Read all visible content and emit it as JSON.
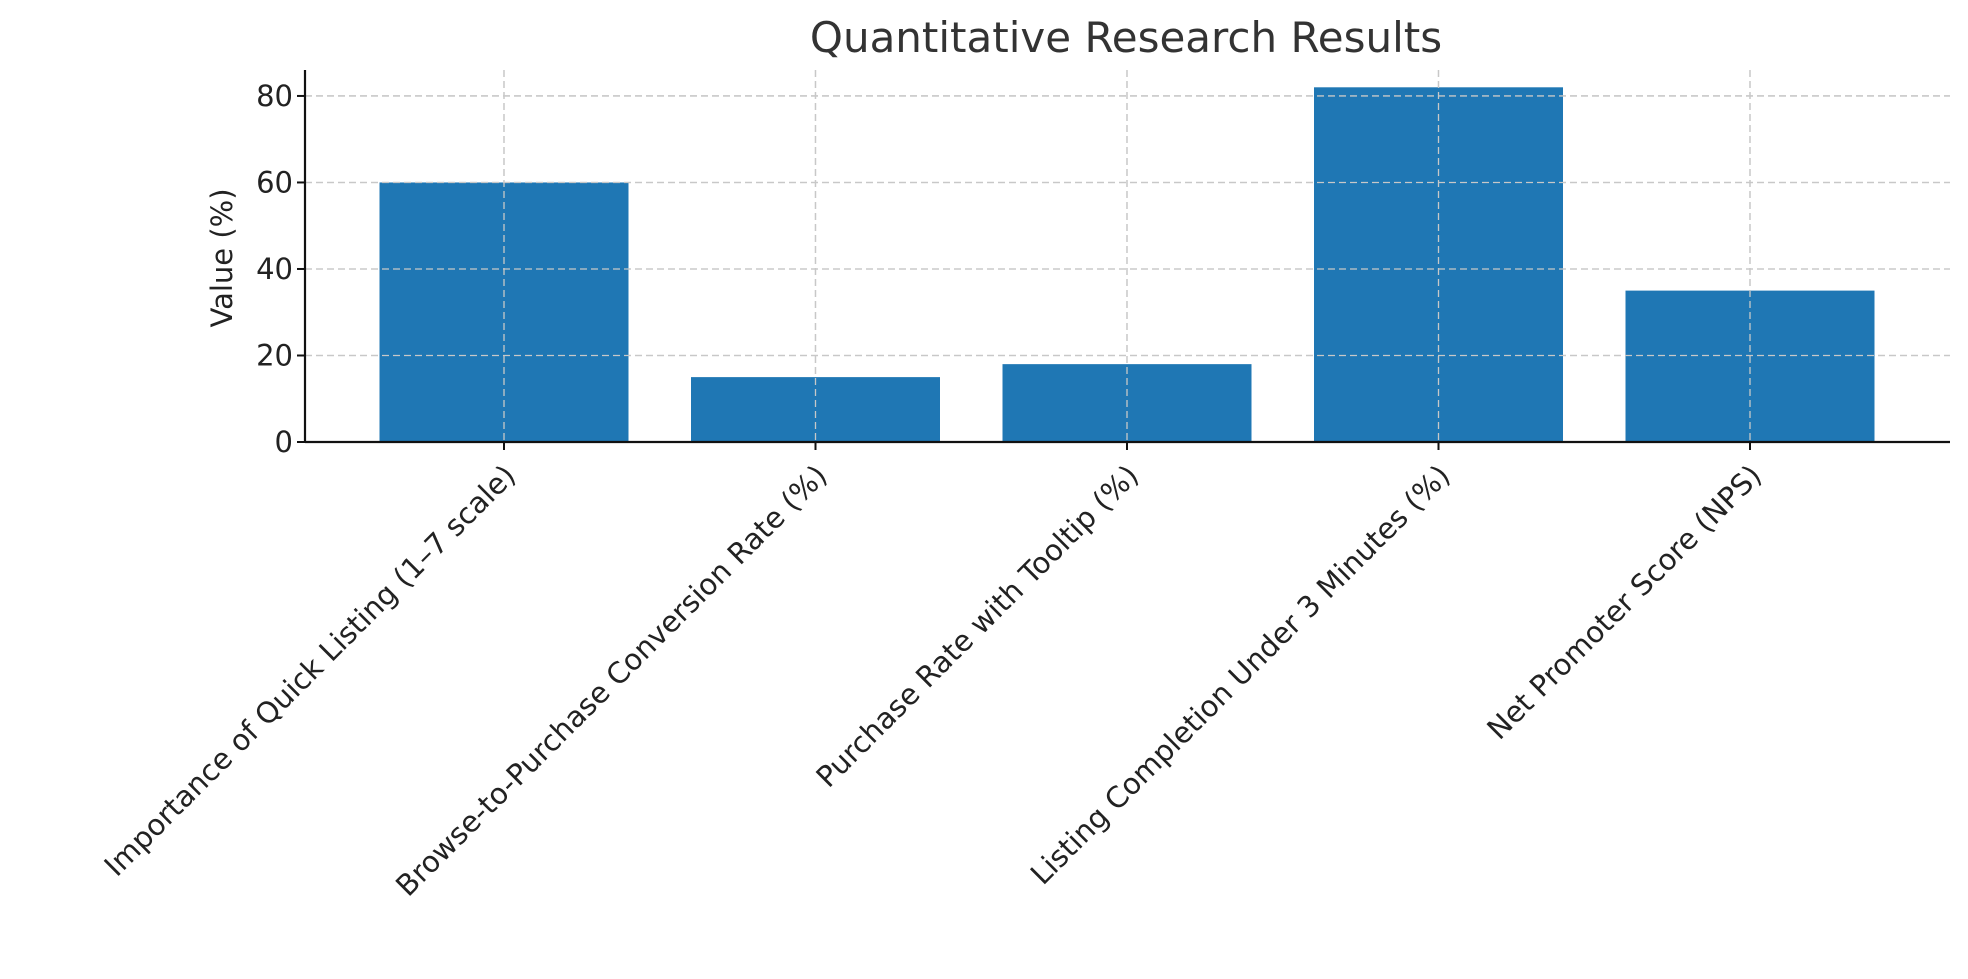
{
  "chart_data": {
    "type": "bar",
    "title": "Quantitative Research Results",
    "xlabel": "",
    "ylabel": "Value (%)",
    "categories": [
      "Importance of Quick Listing (1–7 scale)",
      "Browse-to-Purchase Conversion Rate (%)",
      "Purchase Rate with Tooltip (%)",
      "Listing Completion Under 3 Minutes (%)",
      "Net Promoter Score (NPS)"
    ],
    "values": [
      60,
      15,
      18,
      82,
      35
    ],
    "ylim": [
      0,
      86
    ],
    "yticks": [
      0,
      20,
      40,
      60,
      80
    ],
    "grid": true,
    "bar_color": "#1f77b4"
  }
}
